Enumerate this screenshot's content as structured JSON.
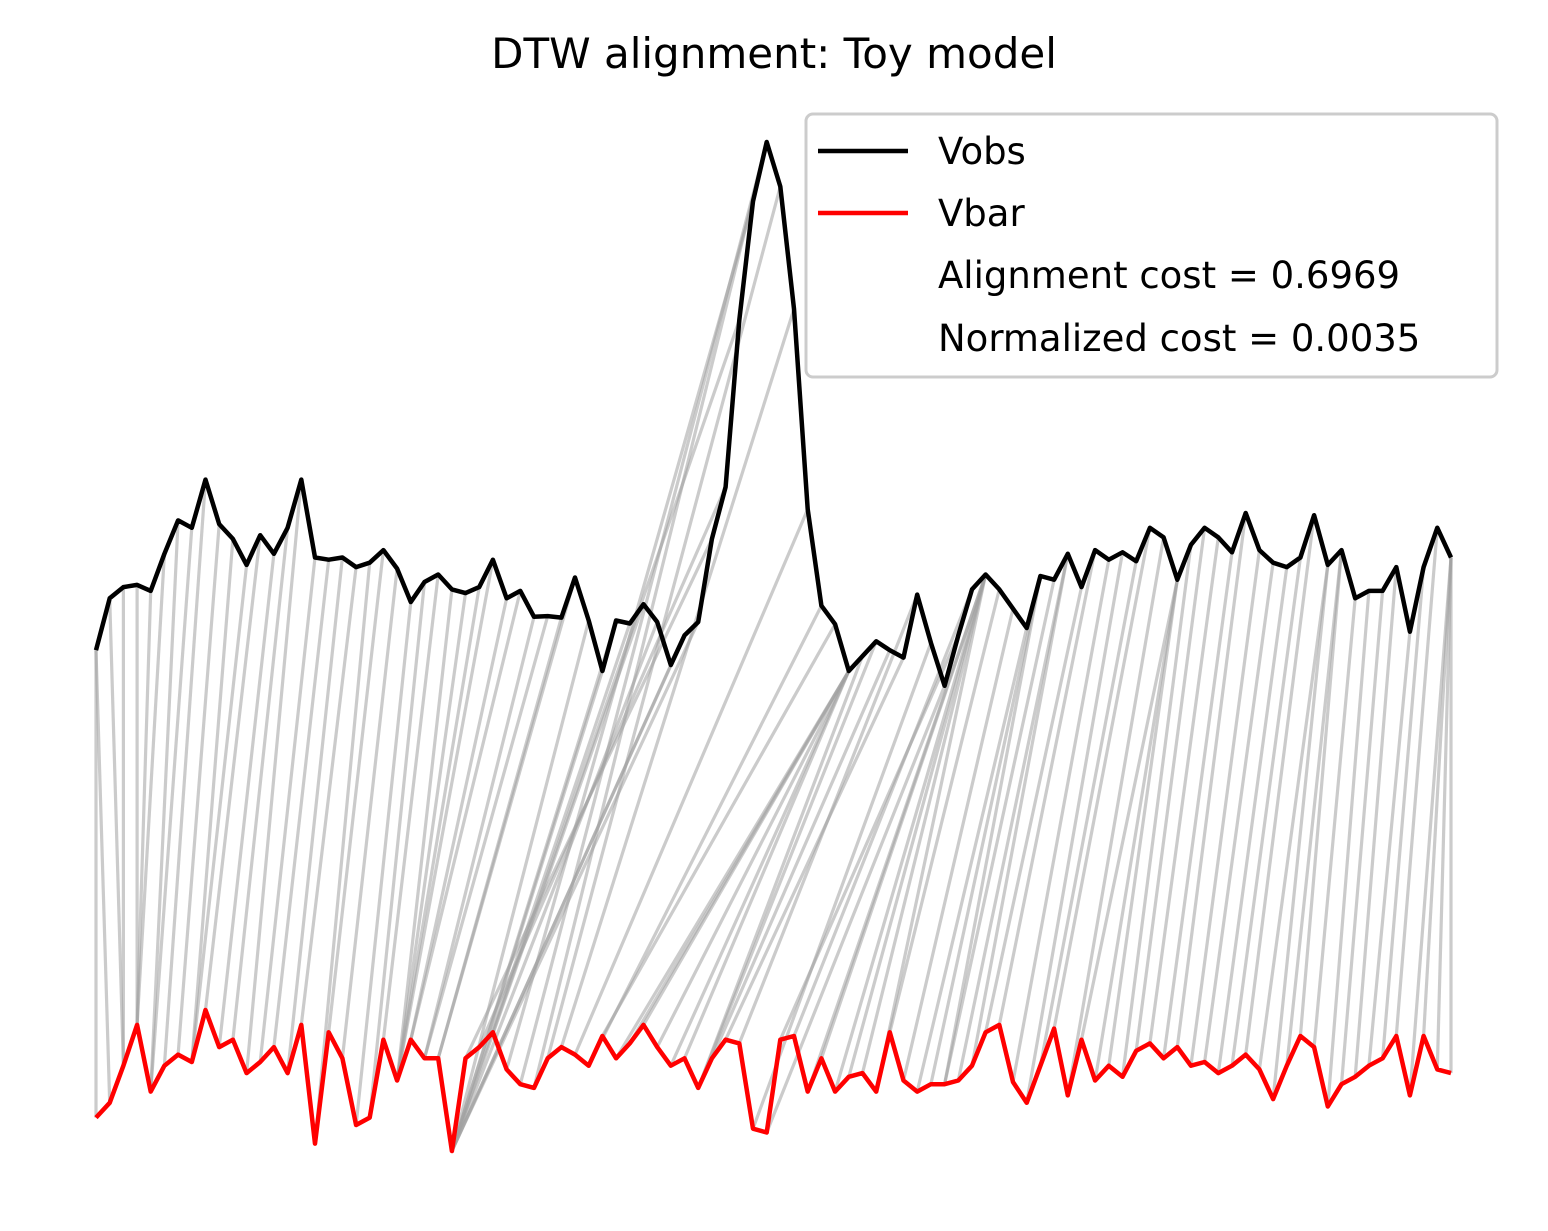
{
  "chart_data": {
    "type": "line",
    "title": "DTW alignment: Toy model",
    "axes_visible": false,
    "grid": false,
    "legend_position": "top-right",
    "colors": {
      "Vobs": "#000000",
      "Vbar": "#ff0000",
      "alignment": "#a0a0a0"
    },
    "series": [
      {
        "name": "Vobs",
        "values": [
          0.2,
          0.9,
          1.05,
          1.08,
          1.0,
          1.5,
          1.95,
          1.85,
          2.5,
          1.9,
          1.7,
          1.35,
          1.75,
          1.5,
          1.85,
          2.5,
          1.45,
          1.42,
          1.45,
          1.32,
          1.38,
          1.55,
          1.3,
          0.85,
          1.12,
          1.22,
          1.02,
          0.97,
          1.05,
          1.42,
          0.9,
          1.0,
          0.65,
          0.66,
          0.64,
          1.18,
          0.6,
          -0.08,
          0.6,
          0.56,
          0.82,
          0.58,
          0.0,
          0.4,
          0.58,
          1.7,
          2.4,
          4.65,
          6.25,
          7.05,
          6.45,
          4.8,
          2.1,
          0.8,
          0.55,
          -0.08,
          0.12,
          0.32,
          0.2,
          0.1,
          0.95,
          0.3,
          -0.28,
          0.4,
          1.02,
          1.22,
          1.02,
          0.76,
          0.5,
          1.2,
          1.15,
          1.5,
          1.05,
          1.55,
          1.42,
          1.52,
          1.4,
          1.85,
          1.72,
          1.15,
          1.62,
          1.85,
          1.72,
          1.52,
          2.05,
          1.55,
          1.38,
          1.32,
          1.45,
          2.02,
          1.35,
          1.55,
          0.9,
          1.0,
          1.0,
          1.32,
          0.45,
          1.32,
          1.85,
          1.45
        ]
      },
      {
        "name": "Vbar",
        "values": [
          -6.1,
          -5.9,
          -5.4,
          -4.85,
          -5.75,
          -5.4,
          -5.25,
          -5.35,
          -4.65,
          -5.15,
          -5.05,
          -5.5,
          -5.35,
          -5.15,
          -5.5,
          -4.85,
          -6.45,
          -4.95,
          -5.3,
          -6.2,
          -6.1,
          -5.05,
          -5.6,
          -5.05,
          -5.3,
          -5.3,
          -6.55,
          -5.3,
          -5.15,
          -4.95,
          -5.45,
          -5.65,
          -5.7,
          -5.3,
          -5.15,
          -5.25,
          -5.4,
          -5.0,
          -5.3,
          -5.1,
          -4.85,
          -5.15,
          -5.4,
          -5.3,
          -5.7,
          -5.3,
          -5.05,
          -5.1,
          -6.25,
          -6.3,
          -5.05,
          -5.0,
          -5.75,
          -5.3,
          -5.75,
          -5.55,
          -5.5,
          -5.75,
          -4.95,
          -5.6,
          -5.75,
          -5.65,
          -5.65,
          -5.6,
          -5.4,
          -4.95,
          -4.85,
          -5.62,
          -5.9,
          -5.4,
          -4.9,
          -5.8,
          -5.05,
          -5.6,
          -5.4,
          -5.55,
          -5.2,
          -5.1,
          -5.3,
          -5.15,
          -5.4,
          -5.35,
          -5.5,
          -5.4,
          -5.25,
          -5.45,
          -5.85,
          -5.4,
          -5.0,
          -5.15,
          -5.95,
          -5.65,
          -5.55,
          -5.4,
          -5.3,
          -5.0,
          -5.8,
          -5.0,
          -5.45,
          -5.5
        ]
      }
    ],
    "alignment_path": [
      [
        0,
        0
      ],
      [
        0,
        1
      ],
      [
        1,
        2
      ],
      [
        2,
        2
      ],
      [
        3,
        3
      ],
      [
        4,
        3
      ],
      [
        5,
        3
      ],
      [
        6,
        4
      ],
      [
        7,
        4
      ],
      [
        8,
        5
      ],
      [
        9,
        6
      ],
      [
        10,
        7
      ],
      [
        11,
        7
      ],
      [
        12,
        8
      ],
      [
        13,
        9
      ],
      [
        14,
        10
      ],
      [
        15,
        11
      ],
      [
        16,
        12
      ],
      [
        17,
        13
      ],
      [
        18,
        14
      ],
      [
        19,
        15
      ],
      [
        20,
        16
      ],
      [
        21,
        17
      ],
      [
        22,
        18
      ],
      [
        23,
        19
      ],
      [
        24,
        20
      ],
      [
        25,
        21
      ],
      [
        26,
        22
      ],
      [
        27,
        22
      ],
      [
        28,
        22
      ],
      [
        29,
        22
      ],
      [
        30,
        23
      ],
      [
        31,
        23
      ],
      [
        32,
        24
      ],
      [
        33,
        24
      ],
      [
        34,
        25
      ],
      [
        35,
        25
      ],
      [
        36,
        26
      ],
      [
        37,
        26
      ],
      [
        38,
        26
      ],
      [
        39,
        26
      ],
      [
        40,
        26
      ],
      [
        41,
        26
      ],
      [
        42,
        26
      ],
      [
        43,
        26
      ],
      [
        44,
        26
      ],
      [
        45,
        27
      ],
      [
        46,
        28
      ],
      [
        47,
        29
      ],
      [
        48,
        30
      ],
      [
        49,
        31
      ],
      [
        49,
        32
      ],
      [
        50,
        33
      ],
      [
        51,
        34
      ],
      [
        52,
        35
      ],
      [
        53,
        36
      ],
      [
        54,
        37
      ],
      [
        55,
        38
      ],
      [
        55,
        39
      ],
      [
        55,
        40
      ],
      [
        55,
        41
      ],
      [
        55,
        42
      ],
      [
        55,
        43
      ],
      [
        56,
        44
      ],
      [
        57,
        44
      ],
      [
        58,
        45
      ],
      [
        59,
        46
      ],
      [
        60,
        47
      ],
      [
        61,
        48
      ],
      [
        62,
        49
      ],
      [
        63,
        50
      ],
      [
        64,
        51
      ],
      [
        65,
        52
      ],
      [
        65,
        53
      ],
      [
        65,
        54
      ],
      [
        65,
        55
      ],
      [
        65,
        56
      ],
      [
        65,
        57
      ],
      [
        66,
        58
      ],
      [
        67,
        59
      ],
      [
        68,
        60
      ],
      [
        69,
        61
      ],
      [
        69,
        62
      ],
      [
        70,
        62
      ],
      [
        71,
        63
      ],
      [
        71,
        64
      ],
      [
        72,
        65
      ],
      [
        73,
        66
      ],
      [
        74,
        67
      ],
      [
        75,
        68
      ],
      [
        76,
        69
      ],
      [
        77,
        70
      ],
      [
        78,
        71
      ],
      [
        79,
        72
      ],
      [
        79,
        73
      ],
      [
        79,
        74
      ],
      [
        80,
        75
      ],
      [
        81,
        76
      ],
      [
        82,
        77
      ],
      [
        83,
        78
      ],
      [
        84,
        79
      ],
      [
        85,
        80
      ],
      [
        86,
        81
      ],
      [
        87,
        82
      ],
      [
        88,
        83
      ],
      [
        89,
        84
      ],
      [
        90,
        85
      ],
      [
        90,
        86
      ],
      [
        91,
        87
      ],
      [
        91,
        88
      ],
      [
        92,
        89
      ],
      [
        93,
        90
      ],
      [
        94,
        91
      ],
      [
        95,
        92
      ],
      [
        96,
        93
      ],
      [
        97,
        94
      ],
      [
        98,
        95
      ],
      [
        99,
        96
      ],
      [
        99,
        97
      ],
      [
        99,
        98
      ],
      [
        99,
        99
      ]
    ],
    "legend": [
      {
        "label": "Vobs",
        "color": "#000000"
      },
      {
        "label": "Vbar",
        "color": "#ff0000"
      },
      {
        "label": "Alignment cost = 0.6969",
        "color": ""
      },
      {
        "label": "Normalized cost = 0.0035",
        "color": ""
      }
    ],
    "annotations": {
      "alignment_cost": "Alignment cost = 0.6969",
      "normalized_cost": "Normalized cost = 0.0035"
    }
  }
}
